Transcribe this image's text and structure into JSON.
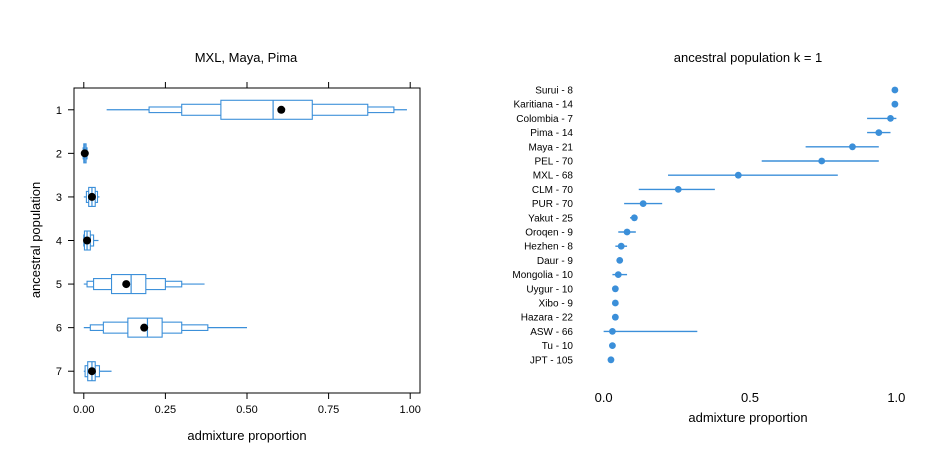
{
  "chart_data": [
    {
      "type": "boxplot",
      "title": "MXL, Maya, Pima",
      "xlabel": "admixture proportion",
      "ylabel": "ancestral population",
      "xlim": [
        -0.03,
        1.03
      ],
      "xticks": [
        0.0,
        0.25,
        0.5,
        0.75,
        1.0
      ],
      "xtick_labels": [
        "0.00",
        "0.25",
        "0.50",
        "0.75",
        "1.00"
      ],
      "categories": [
        "1",
        "2",
        "3",
        "4",
        "5",
        "6",
        "7"
      ],
      "line_color": "#3b8fd9",
      "mean_color": "#000000",
      "series": [
        {
          "name": "1",
          "mean": 0.605,
          "median": 0.58,
          "whisker": [
            0.07,
            0.99
          ],
          "levels": [
            [
              0.42,
              0.7
            ],
            [
              0.3,
              0.87
            ],
            [
              0.2,
              0.95
            ]
          ]
        },
        {
          "name": "2",
          "mean": 0.003,
          "median": 0.003,
          "whisker": [
            -0.005,
            0.015
          ],
          "levels": [
            [
              0.0,
              0.007
            ],
            [
              -0.002,
              0.01
            ]
          ]
        },
        {
          "name": "3",
          "mean": 0.025,
          "median": 0.025,
          "whisker": [
            0.0,
            0.048
          ],
          "levels": [
            [
              0.015,
              0.035
            ],
            [
              0.008,
              0.042
            ]
          ]
        },
        {
          "name": "4",
          "mean": 0.01,
          "median": 0.01,
          "whisker": [
            0.0,
            0.045
          ],
          "levels": [
            [
              0.002,
              0.02
            ],
            [
              0.0,
              0.03
            ]
          ]
        },
        {
          "name": "5",
          "mean": 0.13,
          "median": 0.145,
          "whisker": [
            0.0,
            0.37
          ],
          "levels": [
            [
              0.085,
              0.19
            ],
            [
              0.03,
              0.25
            ],
            [
              0.01,
              0.3
            ]
          ]
        },
        {
          "name": "6",
          "mean": 0.185,
          "median": 0.195,
          "whisker": [
            0.0,
            0.5
          ],
          "levels": [
            [
              0.135,
              0.24
            ],
            [
              0.06,
              0.3
            ],
            [
              0.02,
              0.38
            ]
          ]
        },
        {
          "name": "7",
          "mean": 0.025,
          "median": 0.025,
          "whisker": [
            0.0,
            0.085
          ],
          "levels": [
            [
              0.012,
              0.035
            ],
            [
              0.004,
              0.048
            ]
          ]
        }
      ]
    },
    {
      "type": "dotplot",
      "title": "ancestral population k = 1",
      "xlabel": "admixture proportion",
      "xlim": [
        -0.05,
        1.05
      ],
      "xticks": [
        0.0,
        0.5,
        1.0
      ],
      "xtick_labels": [
        "0.0",
        "0.5",
        "1.0"
      ],
      "point_color": "#3b8fd9",
      "series": [
        {
          "label": "Surui - 8",
          "value": 0.995,
          "ci": null
        },
        {
          "label": "Karitiana - 14",
          "value": 0.995,
          "ci": null
        },
        {
          "label": "Colombia - 7",
          "value": 0.98,
          "ci": [
            0.9,
            1.0
          ]
        },
        {
          "label": "Pima - 14",
          "value": 0.94,
          "ci": [
            0.9,
            0.98
          ]
        },
        {
          "label": "Maya - 21",
          "value": 0.85,
          "ci": [
            0.69,
            0.94
          ]
        },
        {
          "label": "PEL - 70",
          "value": 0.745,
          "ci": [
            0.54,
            0.94
          ]
        },
        {
          "label": "MXL - 68",
          "value": 0.46,
          "ci": [
            0.22,
            0.8
          ]
        },
        {
          "label": "CLM - 70",
          "value": 0.255,
          "ci": [
            0.12,
            0.38
          ]
        },
        {
          "label": "PUR - 70",
          "value": 0.135,
          "ci": [
            0.07,
            0.2
          ]
        },
        {
          "label": "Yakut - 25",
          "value": 0.105,
          "ci": [
            0.09,
            0.115
          ]
        },
        {
          "label": "Oroqen - 9",
          "value": 0.08,
          "ci": [
            0.05,
            0.11
          ]
        },
        {
          "label": "Hezhen - 8",
          "value": 0.06,
          "ci": [
            0.04,
            0.08
          ]
        },
        {
          "label": "Daur - 9",
          "value": 0.055,
          "ci": null
        },
        {
          "label": "Mongolia - 10",
          "value": 0.05,
          "ci": [
            0.03,
            0.08
          ]
        },
        {
          "label": "Uygur - 10",
          "value": 0.04,
          "ci": null
        },
        {
          "label": "Xibo - 9",
          "value": 0.04,
          "ci": null
        },
        {
          "label": "Hazara - 22",
          "value": 0.04,
          "ci": null
        },
        {
          "label": "ASW - 66",
          "value": 0.03,
          "ci": [
            0.0,
            0.32
          ]
        },
        {
          "label": "Tu - 10",
          "value": 0.03,
          "ci": null
        },
        {
          "label": "JPT - 105",
          "value": 0.025,
          "ci": null
        }
      ]
    }
  ]
}
